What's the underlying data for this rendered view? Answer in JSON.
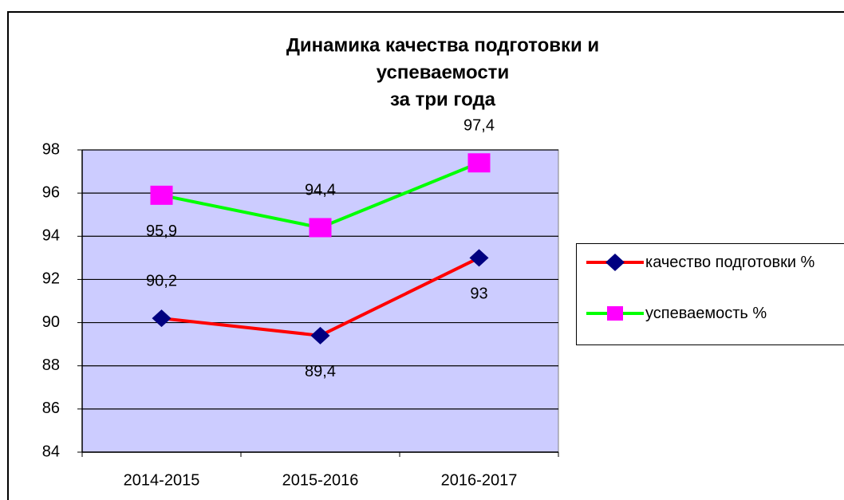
{
  "chart_data": {
    "type": "line",
    "title": [
      "Динамика качества подготовки и",
      "успеваемости",
      "за три года"
    ],
    "categories": [
      "2014-2015",
      "2015-2016",
      "2016-2017"
    ],
    "series": [
      {
        "name": "качество подготовки %",
        "color": "#ff0000",
        "marker_color": "#000080",
        "marker": "diamond",
        "values": [
          90.2,
          89.4,
          93
        ],
        "value_labels": [
          "90,2",
          "89,4",
          "93"
        ]
      },
      {
        "name": "успеваемость %",
        "color": "#00ff00",
        "marker_color": "#ff00ff",
        "marker": "square",
        "values": [
          95.9,
          94.4,
          97.4
        ],
        "value_labels": [
          "95,9",
          "94,4",
          "97,4"
        ]
      }
    ],
    "ylim": [
      84,
      98
    ],
    "yticks": [
      84,
      86,
      88,
      90,
      92,
      94,
      96,
      98
    ],
    "grid": true,
    "plot_background": "#ccccff",
    "legend": "right"
  }
}
